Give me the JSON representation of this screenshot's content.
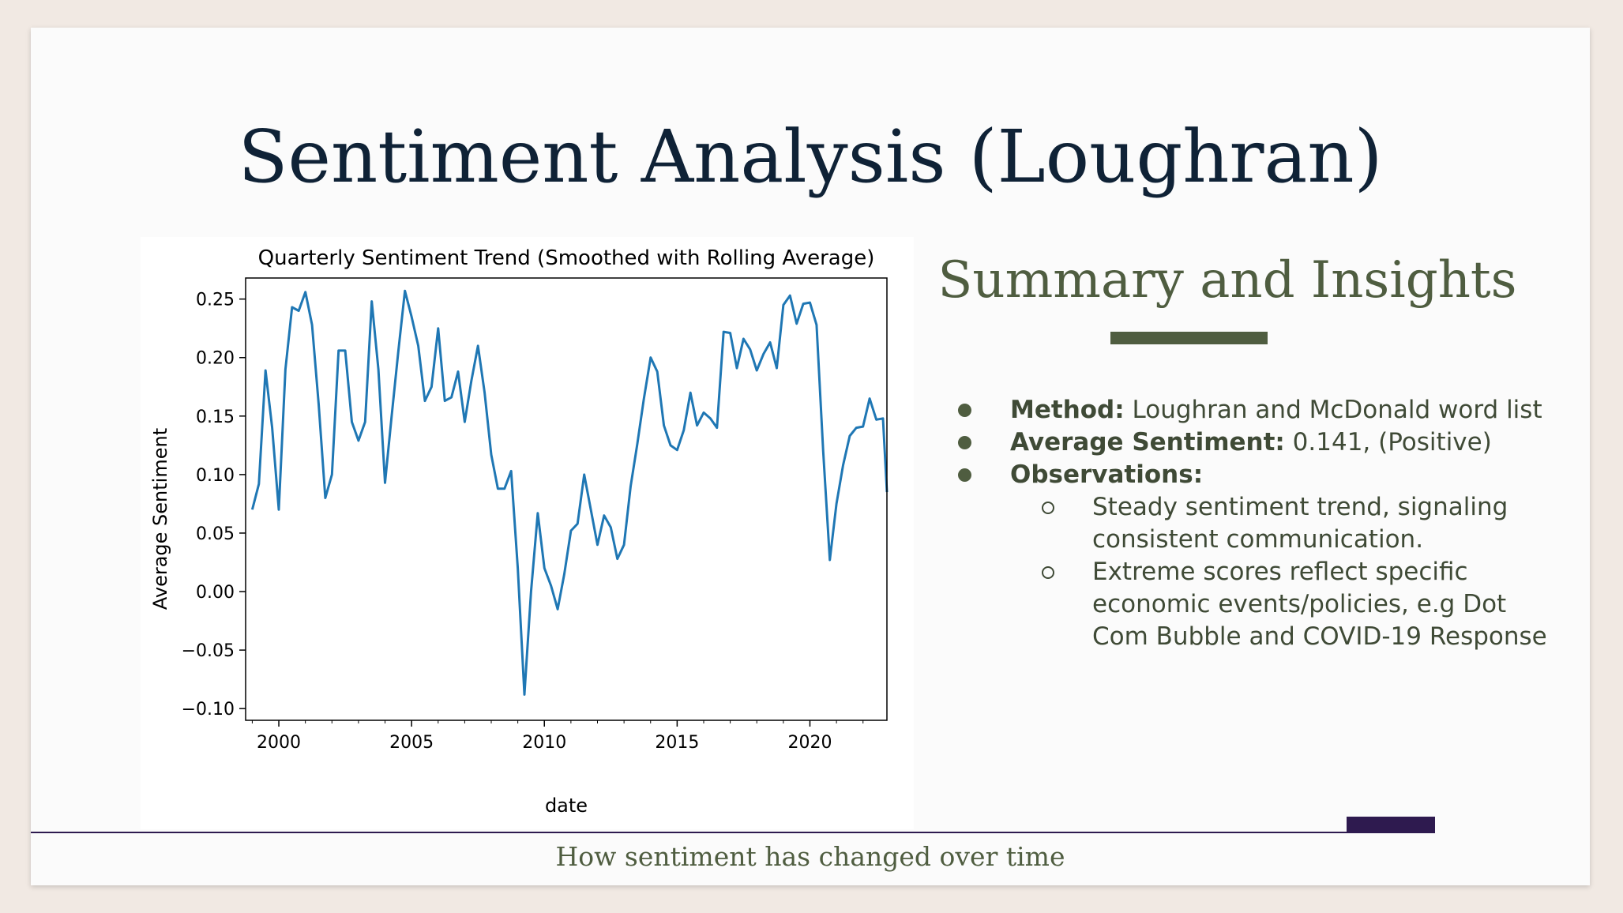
{
  "slide": {
    "title": "Sentiment Analysis (Loughran)",
    "subtitle": "Summary and Insights",
    "footer": "How sentiment has changed over time",
    "colors": {
      "title": "#0f2236",
      "accent": "#4f5d40",
      "footer_bar": "#2e1a4f",
      "line": "#1f77b4"
    }
  },
  "bullets": [
    {
      "label": "Method:",
      "text": " Loughran and McDonald word list"
    },
    {
      "label": "Average Sentiment:",
      "text": " 0.141, (Positive)"
    },
    {
      "label": "Observations:",
      "text": ""
    }
  ],
  "sub_bullets": [
    {
      "lines": [
        "Steady sentiment trend, signaling",
        "consistent communication."
      ]
    },
    {
      "lines": [
        "Extreme scores reflect specific",
        "economic events/policies, e.g Dot",
        "Com Bubble and COVID-19 Response"
      ]
    }
  ],
  "chart_data": {
    "type": "line",
    "title": "Quarterly Sentiment Trend (Smoothed with Rolling Average)",
    "xlabel": "date",
    "ylabel": "Average Sentiment",
    "xlim": [
      1998.75,
      2022.9
    ],
    "ylim": [
      -0.11,
      0.268
    ],
    "xticks": [
      2000,
      2005,
      2010,
      2015,
      2020
    ],
    "xtick_labels": [
      "2000",
      "2005",
      "2010",
      "2015",
      "2020"
    ],
    "yticks": [
      0.25,
      0.2,
      0.15,
      0.1,
      0.05,
      0.0,
      -0.05,
      -0.1
    ],
    "ytick_labels": [
      "0.25",
      "0.20",
      "0.15",
      "0.10",
      "0.05",
      "0.00",
      "−0.05",
      "−0.10"
    ],
    "grid": false,
    "series": [
      {
        "x": [
          1999.0,
          1999.25,
          1999.5,
          1999.75,
          2000.0,
          2000.25,
          2000.5,
          2000.75,
          2001.0,
          2001.25,
          2001.5,
          2001.75,
          2002.0,
          2002.25,
          2002.5,
          2002.75,
          2003.0,
          2003.25,
          2003.5,
          2003.75,
          2004.0,
          2004.25,
          2004.5,
          2004.75,
          2005.0,
          2005.25,
          2005.5,
          2005.75,
          2006.0,
          2006.25,
          2006.5,
          2006.75,
          2007.0,
          2007.25,
          2007.5,
          2007.75,
          2008.0,
          2008.25,
          2008.5,
          2008.75,
          2009.0,
          2009.25,
          2009.5,
          2009.75,
          2010.0,
          2010.25,
          2010.5,
          2010.75,
          2011.0,
          2011.25,
          2011.5,
          2011.75,
          2012.0,
          2012.25,
          2012.5,
          2012.75,
          2013.0,
          2013.25,
          2013.5,
          2013.75,
          2014.0,
          2014.25,
          2014.5,
          2014.75,
          2015.0,
          2015.25,
          2015.5,
          2015.75,
          2016.0,
          2016.25,
          2016.5,
          2016.75,
          2017.0,
          2017.25,
          2017.5,
          2017.75,
          2018.0,
          2018.25,
          2018.5,
          2018.75,
          2019.0,
          2019.25,
          2019.5,
          2019.75,
          2020.0,
          2020.25,
          2020.5,
          2020.75,
          2021.0,
          2021.25,
          2021.5,
          2021.75,
          2022.0,
          2022.25,
          2022.5,
          2022.75,
          2022.9
        ],
        "y": [
          0.07,
          0.092,
          0.189,
          0.14,
          0.07,
          0.19,
          0.243,
          0.24,
          0.256,
          0.228,
          0.16,
          0.08,
          0.1,
          0.206,
          0.206,
          0.145,
          0.129,
          0.145,
          0.248,
          0.19,
          0.093,
          0.15,
          0.205,
          0.257,
          0.235,
          0.21,
          0.163,
          0.175,
          0.225,
          0.163,
          0.166,
          0.188,
          0.145,
          0.18,
          0.21,
          0.17,
          0.117,
          0.088,
          0.088,
          0.103,
          0.02,
          -0.088,
          0.0,
          0.067,
          0.02,
          0.005,
          -0.015,
          0.015,
          0.052,
          0.058,
          0.1,
          0.07,
          0.04,
          0.065,
          0.055,
          0.028,
          0.04,
          0.09,
          0.126,
          0.165,
          0.2,
          0.188,
          0.142,
          0.125,
          0.121,
          0.138,
          0.17,
          0.142,
          0.153,
          0.148,
          0.14,
          0.222,
          0.221,
          0.191,
          0.216,
          0.207,
          0.189,
          0.203,
          0.213,
          0.191,
          0.245,
          0.253,
          0.229,
          0.246,
          0.247,
          0.228,
          0.12,
          0.027,
          0.075,
          0.108,
          0.133,
          0.14,
          0.141,
          0.165,
          0.147,
          0.148,
          0.085
        ]
      }
    ]
  }
}
